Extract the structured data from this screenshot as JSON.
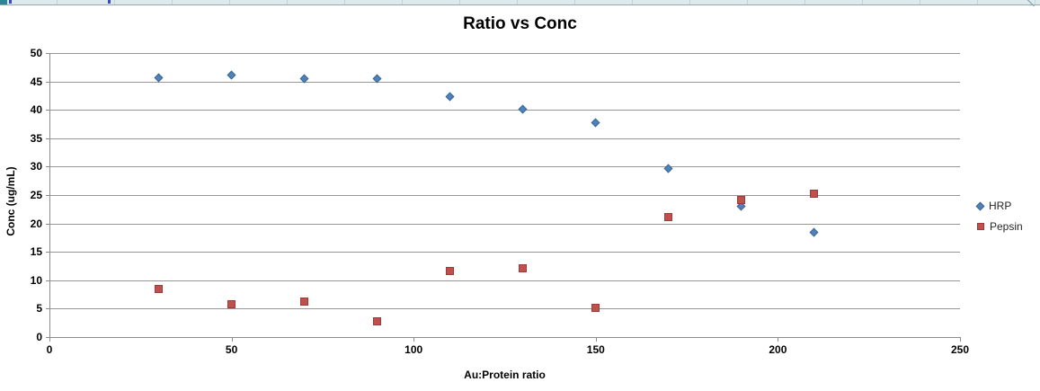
{
  "sheet_row": {
    "description": "partially visible spreadsheet cell row",
    "selection_color": "#2E8497",
    "cell_fill": "#DCEAED",
    "grid_color": "#C2D4D8",
    "clipped_text_color": "#3B48C8"
  },
  "palette": {
    "gridline": "#969696",
    "axis": "#8C8C8C",
    "text": "#000000",
    "legend_text": "#262626"
  },
  "chart_data": {
    "type": "scatter",
    "title": "Ratio vs Conc",
    "xlabel": "Au:Protein ratio",
    "ylabel": "Conc (ug/mL)",
    "xlim": [
      0,
      250
    ],
    "ylim": [
      0,
      50
    ],
    "x_ticks": [
      0,
      50,
      100,
      150,
      200,
      250
    ],
    "y_ticks": [
      0,
      5,
      10,
      15,
      20,
      25,
      30,
      35,
      40,
      45,
      50
    ],
    "grid": "horizontal",
    "legend_position": "right",
    "series": [
      {
        "name": "HRP",
        "marker": "diamond",
        "color": "#4F81BD",
        "border_color": "#396795",
        "points": [
          [
            30,
            45.7
          ],
          [
            50,
            46.2
          ],
          [
            70,
            45.5
          ],
          [
            90,
            45.5
          ],
          [
            110,
            42.4
          ],
          [
            130,
            40.1
          ],
          [
            150,
            37.7
          ],
          [
            170,
            29.6
          ],
          [
            190,
            23.0
          ],
          [
            210,
            18.5
          ]
        ]
      },
      {
        "name": "Pepsin",
        "marker": "square",
        "color": "#C0504D",
        "border_color": "#9E3B38",
        "points": [
          [
            30,
            8.4
          ],
          [
            50,
            5.7
          ],
          [
            70,
            6.2
          ],
          [
            90,
            2.7
          ],
          [
            110,
            11.6
          ],
          [
            130,
            12.1
          ],
          [
            150,
            5.2
          ],
          [
            170,
            21.1
          ],
          [
            190,
            24.2
          ],
          [
            210,
            25.2
          ]
        ]
      }
    ]
  }
}
